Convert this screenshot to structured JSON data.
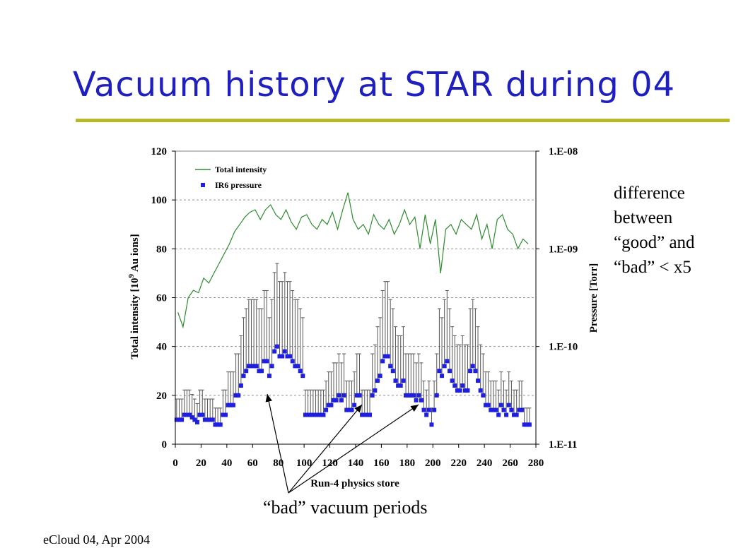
{
  "slide": {
    "title": "Vacuum history at STAR during 04",
    "note_lines": [
      "difference",
      "between",
      "“good” and",
      "“bad” < x5"
    ],
    "annotation": "“bad” vacuum periods",
    "footer": "eCloud 04, Apr 2004",
    "title_color": "#1f1fbf",
    "rule_color": "#b8b828"
  },
  "chart_data": {
    "type": "line",
    "xlabel": "Run-4 physics store",
    "ylabel": "Total intensity [10^9 Au ions]",
    "y2label": "Pressure [Torr]",
    "xlim": [
      0,
      280
    ],
    "ylim": [
      0,
      120
    ],
    "y2lim": [
      "1.E-11",
      "1.E-08"
    ],
    "y2_scale": "log",
    "x_ticks": [
      0,
      20,
      40,
      60,
      80,
      100,
      120,
      140,
      160,
      180,
      200,
      220,
      240,
      260,
      280
    ],
    "y_ticks": [
      0,
      20,
      40,
      60,
      80,
      100,
      120
    ],
    "y2_ticks": [
      "1.E-11",
      "1.E-10",
      "1.E-09",
      "1.E-08"
    ],
    "grid": "horizontal dashed",
    "legend_position": "top-left",
    "series": [
      {
        "name": "Total intensity",
        "color": "#2e8b2e",
        "axis": "left",
        "x": [
          2,
          6,
          10,
          14,
          18,
          22,
          26,
          30,
          34,
          38,
          42,
          46,
          50,
          54,
          58,
          62,
          66,
          70,
          74,
          78,
          82,
          86,
          90,
          94,
          98,
          102,
          106,
          110,
          114,
          118,
          122,
          126,
          130,
          134,
          138,
          142,
          146,
          150,
          154,
          158,
          162,
          166,
          170,
          174,
          178,
          182,
          186,
          190,
          194,
          198,
          202,
          206,
          210,
          214,
          218,
          222,
          226,
          230,
          234,
          238,
          242,
          246,
          250,
          254,
          258,
          262,
          266,
          270,
          274
        ],
        "y": [
          54,
          48,
          60,
          63,
          62,
          68,
          66,
          70,
          74,
          78,
          82,
          87,
          90,
          93,
          95,
          96,
          92,
          96,
          98,
          94,
          92,
          96,
          91,
          88,
          93,
          94,
          90,
          88,
          92,
          90,
          95,
          88,
          96,
          103,
          92,
          88,
          90,
          86,
          94,
          90,
          88,
          92,
          86,
          90,
          96,
          90,
          93,
          80,
          94,
          82,
          92,
          70,
          88,
          90,
          86,
          92,
          90,
          88,
          94,
          84,
          90,
          80,
          92,
          94,
          88,
          86,
          80,
          84,
          82
        ]
      },
      {
        "name": "IR6 pressure",
        "color": "#1f1fe0",
        "axis": "right",
        "marker": "square",
        "x": [
          1,
          3,
          5,
          7,
          9,
          11,
          13,
          15,
          17,
          19,
          21,
          23,
          25,
          27,
          29,
          31,
          33,
          35,
          37,
          39,
          41,
          43,
          45,
          47,
          49,
          51,
          53,
          55,
          57,
          59,
          61,
          63,
          65,
          67,
          69,
          71,
          73,
          75,
          77,
          79,
          81,
          83,
          85,
          87,
          89,
          91,
          93,
          95,
          97,
          99,
          101,
          103,
          105,
          107,
          109,
          111,
          113,
          115,
          117,
          119,
          121,
          123,
          125,
          127,
          129,
          131,
          133,
          135,
          137,
          139,
          141,
          143,
          145,
          147,
          149,
          151,
          153,
          155,
          157,
          159,
          161,
          163,
          165,
          167,
          169,
          171,
          173,
          175,
          177,
          179,
          181,
          183,
          185,
          187,
          189,
          191,
          193,
          195,
          197,
          199,
          201,
          203,
          205,
          207,
          209,
          211,
          213,
          215,
          217,
          219,
          221,
          223,
          225,
          227,
          229,
          231,
          233,
          235,
          237,
          239,
          241,
          243,
          245,
          247,
          249,
          251,
          253,
          255,
          257,
          259,
          261,
          263,
          265,
          267,
          269,
          271,
          273,
          275
        ],
        "y_plot": [
          10,
          10,
          10,
          12,
          12,
          12,
          11,
          10,
          9,
          12,
          12,
          10,
          10,
          10,
          10,
          8,
          8,
          8,
          12,
          12,
          16,
          16,
          16,
          20,
          20,
          24,
          28,
          30,
          32,
          32,
          32,
          32,
          30,
          30,
          34,
          34,
          28,
          32,
          38,
          40,
          36,
          36,
          38,
          36,
          36,
          34,
          32,
          32,
          30,
          28,
          12,
          12,
          12,
          12,
          12,
          12,
          12,
          12,
          14,
          16,
          16,
          18,
          18,
          20,
          18,
          20,
          14,
          14,
          14,
          16,
          20,
          20,
          12,
          12,
          12,
          12,
          20,
          22,
          26,
          28,
          34,
          36,
          36,
          32,
          30,
          26,
          24,
          24,
          26,
          20,
          20,
          20,
          20,
          18,
          20,
          18,
          14,
          12,
          14,
          8,
          14,
          20,
          30,
          28,
          32,
          34,
          30,
          26,
          24,
          22,
          22,
          24,
          22,
          22,
          30,
          32,
          30,
          26,
          22,
          20,
          16,
          16,
          14,
          14,
          14,
          12,
          16,
          14,
          12,
          16,
          14,
          12,
          12,
          14,
          14,
          8,
          8,
          8
        ]
      }
    ]
  }
}
